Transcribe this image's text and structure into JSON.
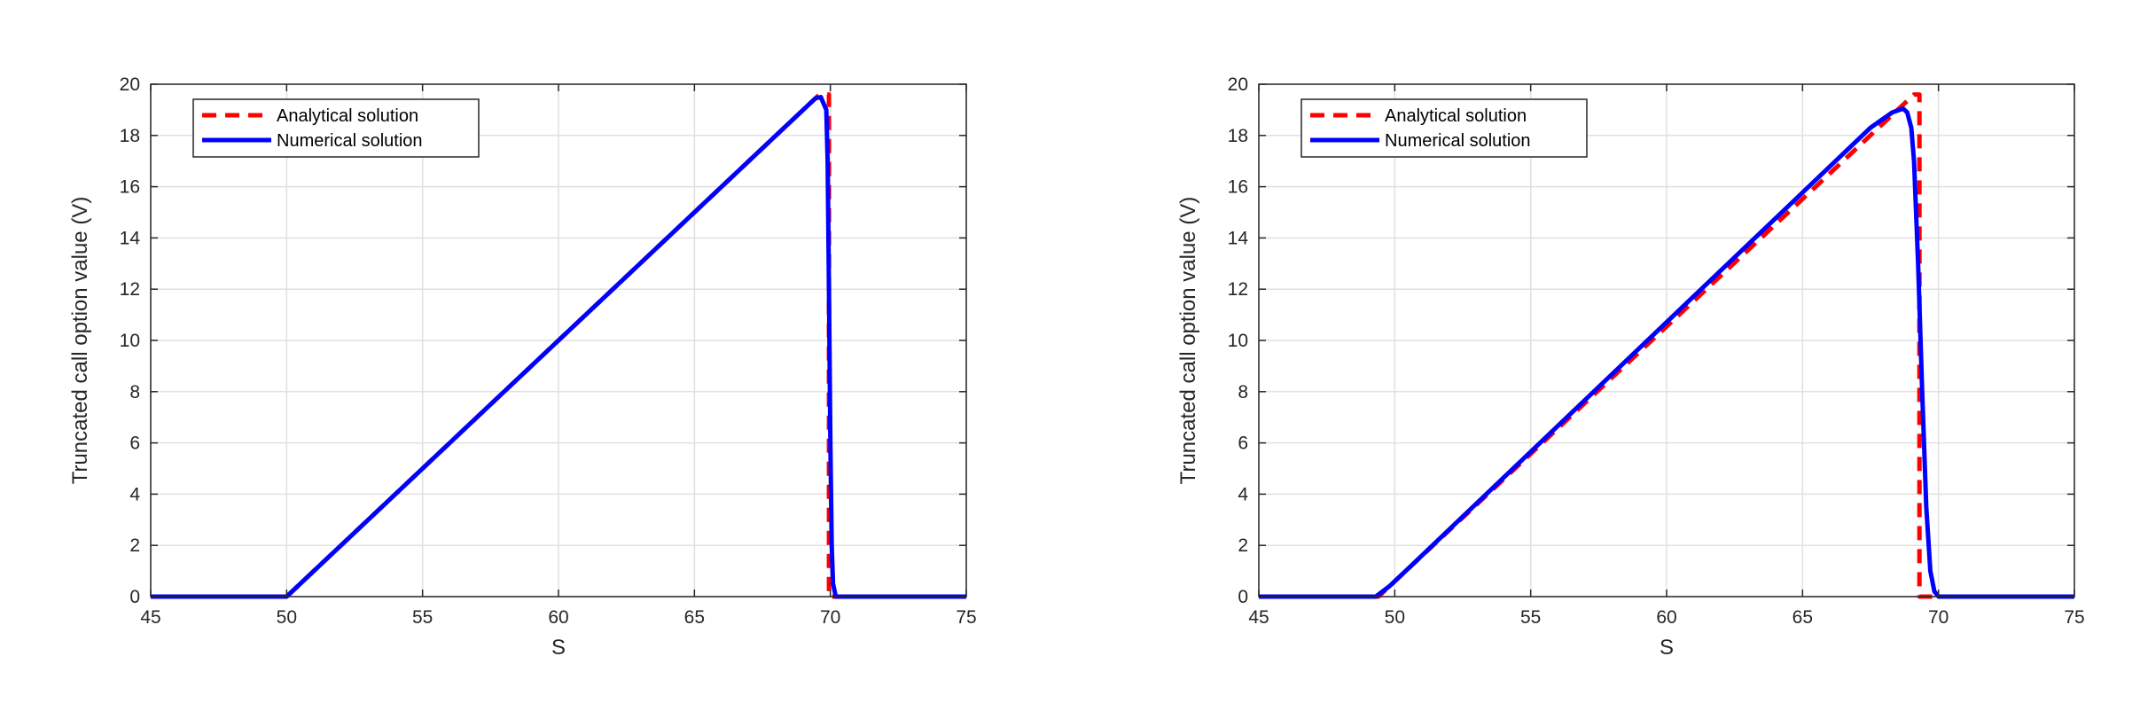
{
  "chart_data": [
    {
      "type": "line",
      "title": "",
      "xlabel": "S",
      "ylabel": "Truncated call option value (V)",
      "xlim": [
        45,
        75
      ],
      "ylim": [
        0,
        20
      ],
      "xticks": [
        "45",
        "50",
        "55",
        "60",
        "65",
        "70",
        "75"
      ],
      "yticks": [
        "0",
        "2",
        "4",
        "6",
        "8",
        "10",
        "12",
        "14",
        "16",
        "18",
        "20"
      ],
      "grid": true,
      "legend_position": "top-left",
      "series": [
        {
          "name": "Analytical solution",
          "color": "#ff0000",
          "style": "dashed",
          "x": [
            45,
            50,
            69.6,
            69.95,
            69.95,
            70.05,
            75
          ],
          "y": [
            0,
            0,
            19.6,
            19.6,
            0,
            0,
            0
          ]
        },
        {
          "name": "Numerical solution",
          "color": "#0000ff",
          "style": "solid",
          "x": [
            45,
            50,
            69.45,
            69.65,
            69.85,
            69.9,
            69.95,
            70.0,
            70.05,
            70.1,
            70.2,
            75
          ],
          "y": [
            0,
            0,
            19.45,
            19.5,
            19.0,
            17.0,
            12.0,
            6.0,
            2.0,
            0.5,
            0,
            0
          ]
        }
      ]
    },
    {
      "type": "line",
      "title": "",
      "xlabel": "S",
      "ylabel": "Truncated call option value (V)",
      "xlim": [
        45,
        75
      ],
      "ylim": [
        0,
        20
      ],
      "xticks": [
        "45",
        "50",
        "55",
        "60",
        "65",
        "70",
        "75"
      ],
      "yticks": [
        "0",
        "2",
        "4",
        "6",
        "8",
        "10",
        "12",
        "14",
        "16",
        "18",
        "20"
      ],
      "grid": true,
      "legend_position": "top-left",
      "series": [
        {
          "name": "Analytical solution",
          "color": "#ff0000",
          "style": "dashed",
          "x": [
            45,
            49.4,
            69.1,
            69.3,
            69.3,
            69.5,
            75
          ],
          "y": [
            0,
            0,
            19.6,
            19.6,
            0,
            0,
            0
          ]
        },
        {
          "name": "Numerical solution",
          "color": "#0000ff",
          "style": "solid",
          "x": [
            45,
            49.3,
            49.8,
            50.5,
            67.5,
            68.3,
            68.7,
            68.85,
            69.0,
            69.1,
            69.25,
            69.4,
            69.55,
            69.7,
            69.85,
            70.0,
            75
          ],
          "y": [
            0,
            0,
            0.4,
            1.1,
            18.3,
            18.9,
            19.05,
            18.9,
            18.3,
            17.0,
            13.0,
            8.0,
            3.5,
            1.0,
            0.2,
            0,
            0
          ]
        }
      ]
    }
  ]
}
